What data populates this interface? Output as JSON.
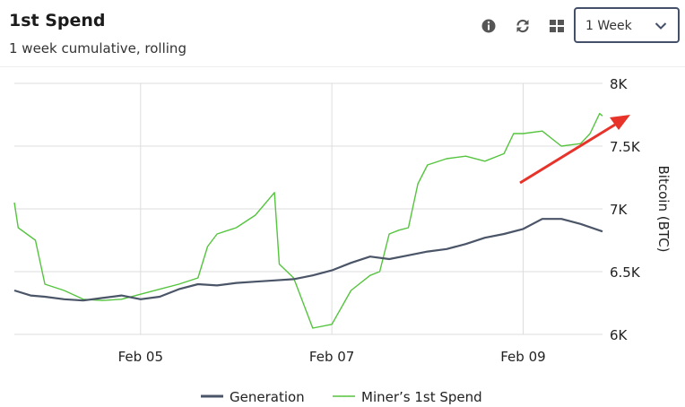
{
  "header": {
    "title": "1st Spend",
    "subtitle": "1 week cumulative, rolling",
    "icons": [
      "info-icon",
      "refresh-icon",
      "grid-icon"
    ],
    "range_select": {
      "value": "1 Week"
    }
  },
  "colors": {
    "generation": "#4b5568",
    "miner": "#55c43e",
    "annotation": "#e8332a",
    "grid": "#dddddd"
  },
  "chart_data": {
    "type": "line",
    "title": "",
    "ylabel": "Bitcoin (BTC)",
    "ylim": [
      6000,
      8000
    ],
    "yticks": [
      6000,
      6500,
      7000,
      7500,
      8000
    ],
    "ytick_labels": [
      "6K",
      "6.5K",
      "7K",
      "7.5K",
      "8K"
    ],
    "xlim": [
      3.68,
      9.83
    ],
    "xticks": [
      5,
      7,
      9
    ],
    "xtick_labels": [
      "Feb 05",
      "Feb 07",
      "Feb 09"
    ],
    "x_unit": "day of February",
    "legend_position": "bottom",
    "series": [
      {
        "name": "Generation",
        "x": [
          3.68,
          3.85,
          4.0,
          4.2,
          4.4,
          4.6,
          4.8,
          5.0,
          5.2,
          5.4,
          5.6,
          5.8,
          6.0,
          6.2,
          6.4,
          6.6,
          6.8,
          7.0,
          7.2,
          7.4,
          7.6,
          7.8,
          8.0,
          8.2,
          8.4,
          8.6,
          8.8,
          9.0,
          9.2,
          9.4,
          9.6,
          9.83
        ],
        "y": [
          6350,
          6310,
          6300,
          6280,
          6270,
          6290,
          6310,
          6280,
          6300,
          6360,
          6400,
          6390,
          6410,
          6420,
          6430,
          6440,
          6470,
          6510,
          6570,
          6620,
          6600,
          6630,
          6660,
          6680,
          6720,
          6770,
          6800,
          6840,
          6920,
          6920,
          6880,
          6820
        ]
      },
      {
        "name": "Miner’s 1st Spend",
        "x": [
          3.68,
          3.72,
          3.9,
          4.0,
          4.2,
          4.4,
          4.6,
          4.8,
          5.0,
          5.2,
          5.4,
          5.6,
          5.7,
          5.8,
          6.0,
          6.2,
          6.4,
          6.45,
          6.6,
          6.8,
          7.0,
          7.2,
          7.4,
          7.5,
          7.6,
          7.7,
          7.8,
          7.9,
          8.0,
          8.2,
          8.4,
          8.6,
          8.8,
          8.9,
          9.0,
          9.2,
          9.4,
          9.6,
          9.7,
          9.8,
          9.83
        ],
        "y": [
          7050,
          6850,
          6750,
          6400,
          6350,
          6280,
          6270,
          6280,
          6320,
          6360,
          6400,
          6450,
          6700,
          6800,
          6850,
          6950,
          7130,
          6560,
          6450,
          6050,
          6080,
          6350,
          6470,
          6500,
          6800,
          6830,
          6850,
          7200,
          7350,
          7400,
          7420,
          7380,
          7440,
          7600,
          7600,
          7620,
          7500,
          7520,
          7600,
          7760,
          7740
        ]
      }
    ]
  }
}
